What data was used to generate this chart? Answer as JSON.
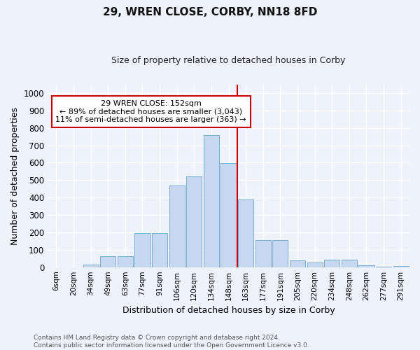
{
  "title": "29, WREN CLOSE, CORBY, NN18 8FD",
  "subtitle": "Size of property relative to detached houses in Corby",
  "xlabel": "Distribution of detached houses by size in Corby",
  "ylabel": "Number of detached properties",
  "categories": [
    "6sqm",
    "20sqm",
    "34sqm",
    "49sqm",
    "63sqm",
    "77sqm",
    "91sqm",
    "106sqm",
    "120sqm",
    "134sqm",
    "148sqm",
    "163sqm",
    "177sqm",
    "191sqm",
    "205sqm",
    "220sqm",
    "234sqm",
    "248sqm",
    "262sqm",
    "277sqm",
    "291sqm"
  ],
  "values": [
    0,
    0,
    15,
    63,
    63,
    197,
    197,
    470,
    520,
    760,
    597,
    390,
    155,
    155,
    40,
    25,
    43,
    43,
    10,
    3,
    7
  ],
  "bar_color": "#c5d8f0",
  "bar_edge_color": "#7aadd4",
  "annotation_text": "29 WREN CLOSE: 152sqm\n← 89% of detached houses are smaller (3,043)\n11% of semi-detached houses are larger (363) →",
  "annotation_box_color": "#ffffff",
  "annotation_box_edge": "#cc0000",
  "vline_color": "#cc0000",
  "background_color": "#eef2fa",
  "footer_text": "Contains HM Land Registry data © Crown copyright and database right 2024.\nContains public sector information licensed under the Open Government Licence v3.0.",
  "ylim": [
    0,
    1050
  ],
  "grid_color": "#ffffff",
  "title_fontsize": 11,
  "subtitle_fontsize": 9,
  "ylabel_fontsize": 9,
  "xlabel_fontsize": 9
}
